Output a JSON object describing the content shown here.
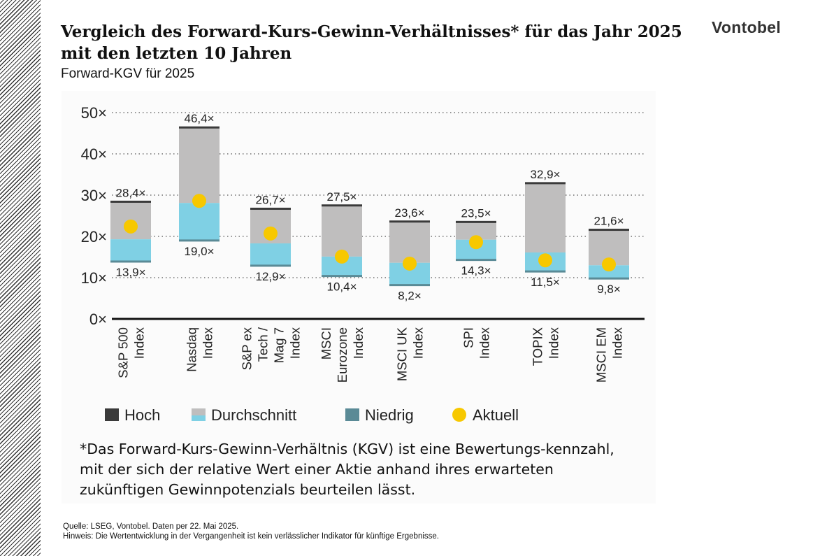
{
  "header": {
    "title": "Vergleich des Forward-Kurs-Gewinn-Verhältnisses* für das Jahr 2025 mit den letzten 10 Jahren",
    "subtitle": "Forward-KGV für 2025",
    "logo": "Vontobel"
  },
  "chart_data": {
    "type": "bar",
    "title": "",
    "ylim": [
      0,
      50
    ],
    "yticks": [
      "0×",
      "10×",
      "20×",
      "30×",
      "40×",
      "50×"
    ],
    "grid": true,
    "legend_position": "bottom",
    "categories": [
      [
        "S&P 500",
        "Index"
      ],
      [
        "Nasdaq",
        "Index"
      ],
      [
        "S&P ex",
        "Tech /",
        "Mag 7",
        "Index"
      ],
      [
        "MSCI",
        "Eurozone",
        "Index"
      ],
      [
        "MSCI UK",
        "Index"
      ],
      [
        "SPI",
        "Index"
      ],
      [
        "TOPIX",
        "Index"
      ],
      [
        "MSCI EM",
        "Index"
      ]
    ],
    "series": [
      {
        "name": "Hoch",
        "values": [
          28.4,
          46.4,
          26.7,
          27.5,
          23.6,
          23.5,
          32.9,
          21.6
        ],
        "labels": [
          "28,4×",
          "46,4×",
          "26,7×",
          "27,5×",
          "23,6×",
          "23,5×",
          "32,9×",
          "21,6×"
        ]
      },
      {
        "name": "Durchschnitt",
        "values": [
          19.3,
          28.1,
          18.3,
          15.1,
          13.6,
          19.2,
          16.1,
          13.0
        ]
      },
      {
        "name": "Niedrig",
        "values": [
          13.9,
          19.0,
          12.9,
          10.4,
          8.2,
          14.3,
          11.5,
          9.8
        ],
        "labels": [
          "13,9×",
          "19,0×",
          "12,9×",
          "10,4×",
          "8,2×",
          "14,3×",
          "11,5×",
          "9,8×"
        ]
      },
      {
        "name": "Aktuell",
        "values": [
          22.4,
          28.6,
          20.7,
          15.1,
          13.4,
          18.6,
          14.2,
          13.2
        ]
      }
    ],
    "colors": {
      "hoch": "#3a3a3a",
      "durchschnitt_upper": "#bfbebe",
      "durchschnitt_lower": "#7fd0e4",
      "niedrig": "#5a8a96",
      "aktuell": "#f7c800"
    }
  },
  "footnote": "*Das Forward-Kurs-Gewinn-Verhältnis (KGV) ist eine Bewertungs-kennzahl, mit der sich der relative Wert einer Aktie anhand ihres erwarteten zukünftigen Gewinnpotenzials beurteilen lässt.",
  "source": {
    "line1": "Quelle: LSEG, Vontobel. Daten per 22. Mai 2025.",
    "line2": "Hinweis: Die Wertentwicklung in der Vergangenheit ist kein verlässlicher Indikator für künftige Ergebnisse."
  }
}
